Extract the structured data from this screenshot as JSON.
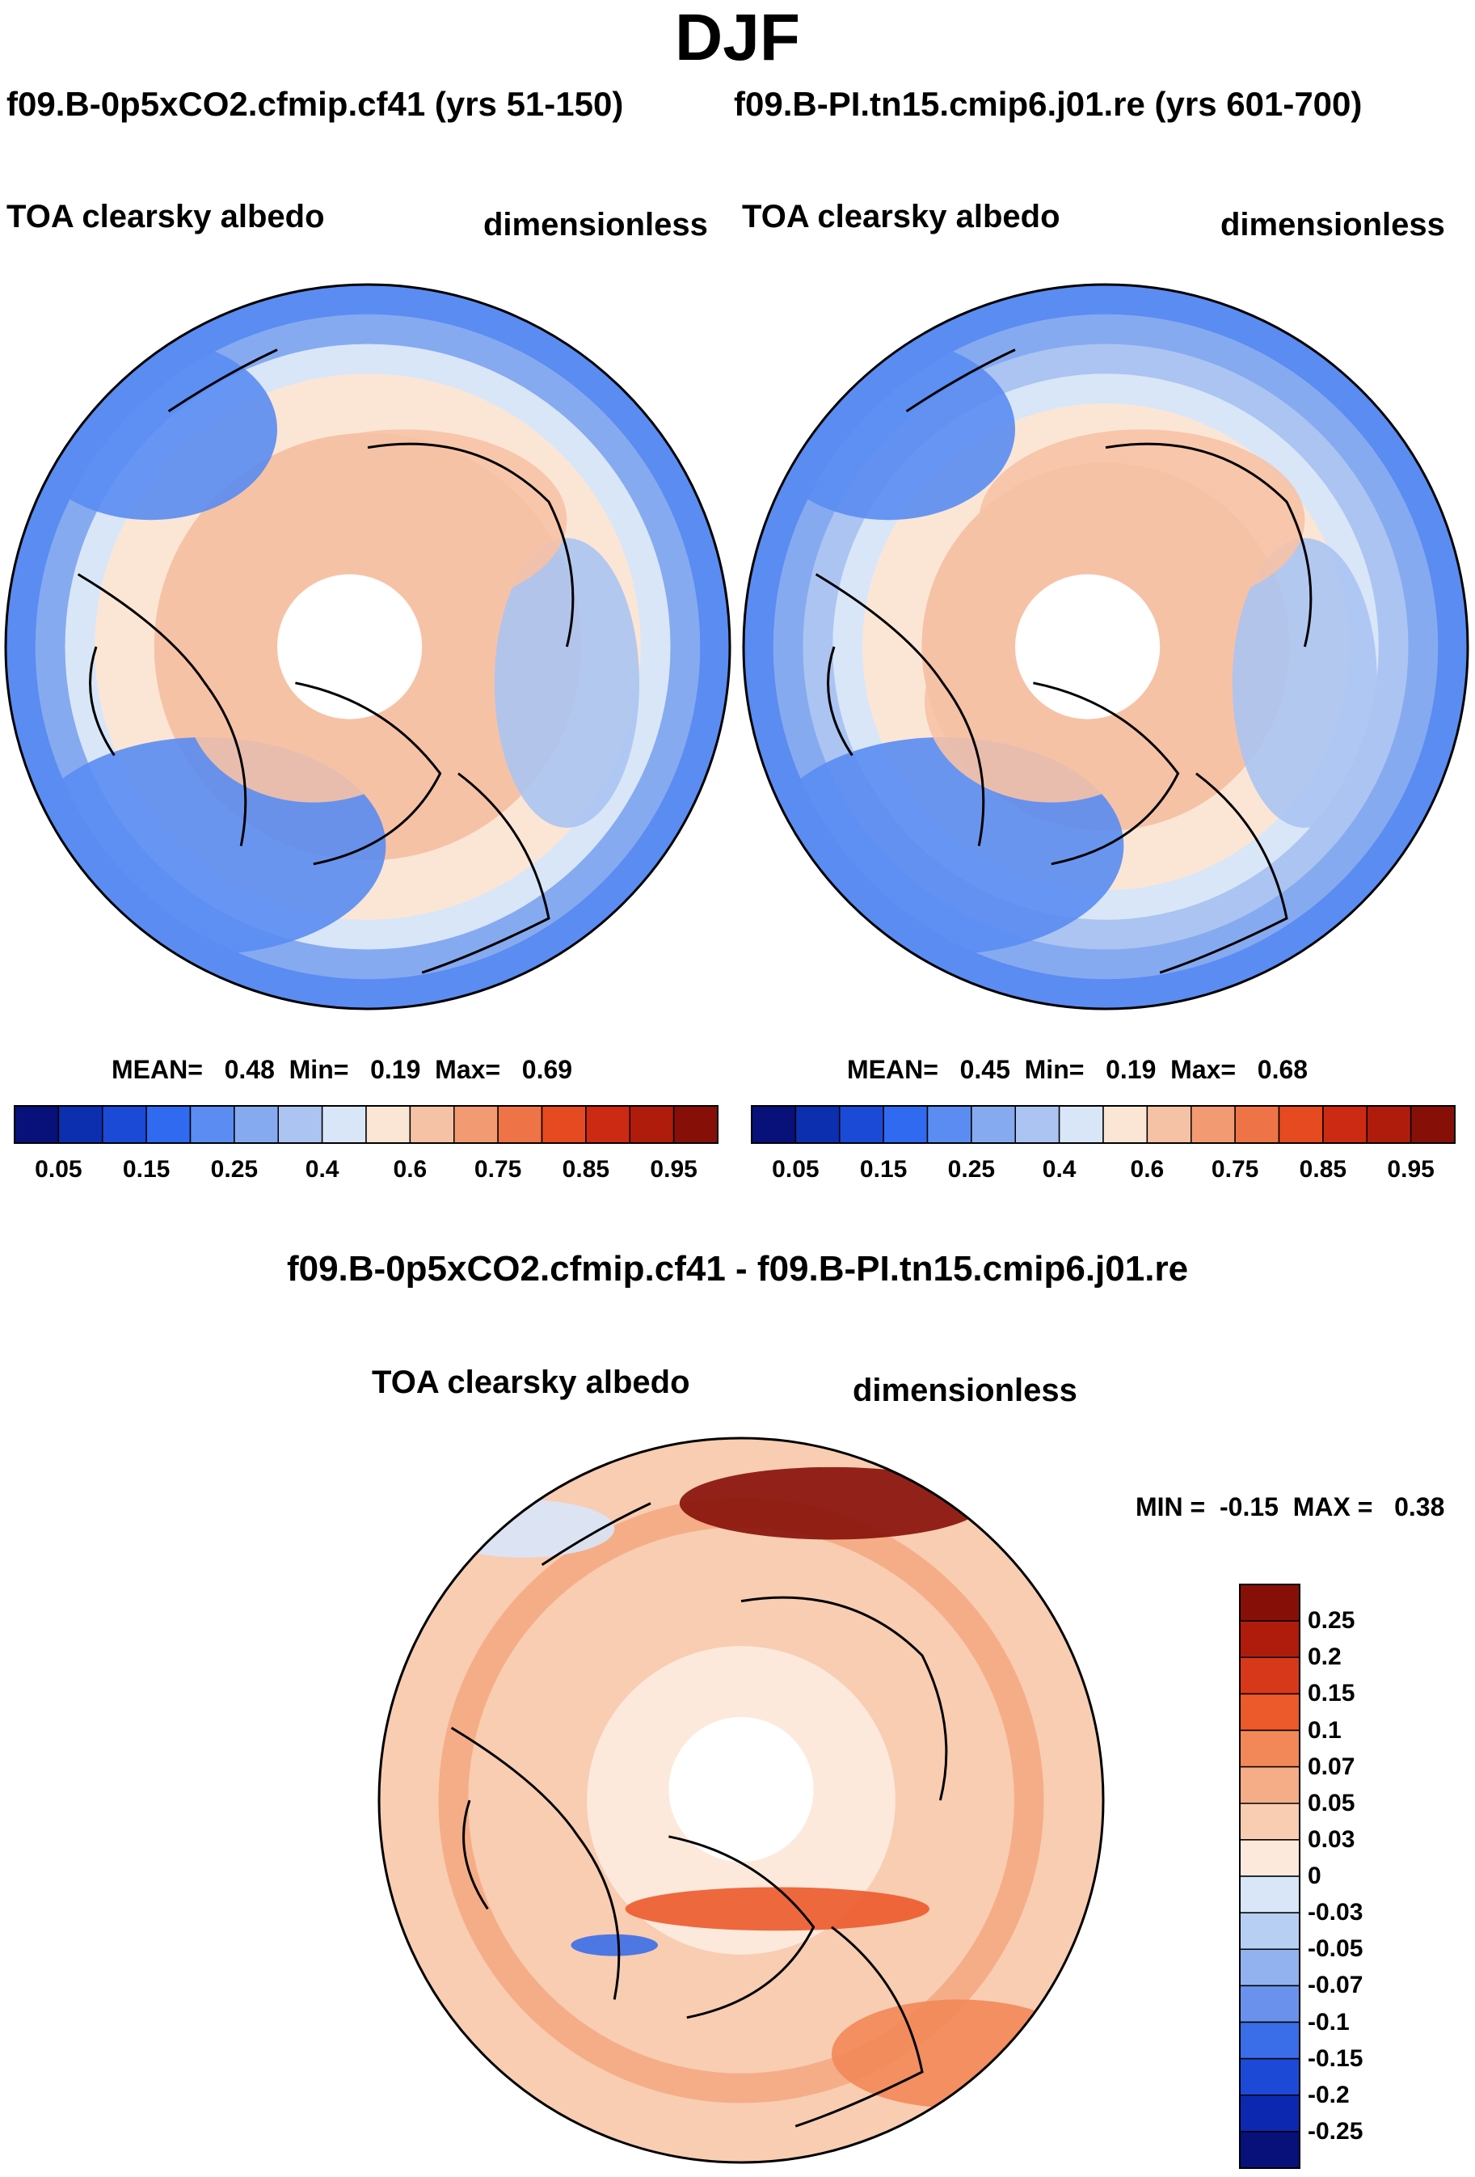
{
  "page": {
    "season": "DJF",
    "run_a_label": "f09.B-0p5xCO2.cfmip.cf41 (yrs 51-150)",
    "run_b_label": "f09.B-PI.tn15.cmip6.j01.re (yrs 601-700)",
    "diff_label": "f09.B-0p5xCO2.cfmip.cf41 - f09.B-PI.tn15.cmip6.j01.re"
  },
  "chart_data": [
    {
      "type": "heatmap",
      "projection": "north polar stereographic",
      "title": "TOA clearsky albedo",
      "units": "dimensionless",
      "stats": {
        "mean_label": "MEAN=",
        "mean": "0.48",
        "min_label": "Min=",
        "min": "0.19",
        "max_label": "Max=",
        "max": "0.69"
      },
      "levels": [
        0.05,
        0.1,
        0.15,
        0.2,
        0.25,
        0.3,
        0.35,
        0.4,
        0.5,
        0.6,
        0.7,
        0.75,
        0.8,
        0.85,
        0.9,
        0.95
      ],
      "tick_labels": [
        "0.05",
        "0.15",
        "0.25",
        "0.4",
        "0.6",
        "0.75",
        "0.85",
        "0.95"
      ],
      "colors": [
        "#08107a",
        "#0c2fb0",
        "#1a4ad6",
        "#2f6af0",
        "#5a8cf2",
        "#86aaf0",
        "#abc4f2",
        "#d8e6f8",
        "#fbe6d6",
        "#f6c2a6",
        "#f29a72",
        "#ee7346",
        "#e64a20",
        "#cc2a12",
        "#b01c0c",
        "#861008"
      ],
      "field": {
        "ring_values": [
          0.55,
          0.55,
          0.55,
          0.53,
          0.52,
          0.47,
          0.42,
          0.36,
          0.3,
          0.25
        ]
      }
    },
    {
      "type": "heatmap",
      "projection": "north polar stereographic",
      "title": "TOA clearsky albedo",
      "units": "dimensionless",
      "stats": {
        "mean_label": "MEAN=",
        "mean": "0.45",
        "min_label": "Min=",
        "min": "0.19",
        "max_label": "Max=",
        "max": "0.68"
      },
      "levels": [
        0.05,
        0.1,
        0.15,
        0.2,
        0.25,
        0.3,
        0.35,
        0.4,
        0.5,
        0.6,
        0.7,
        0.75,
        0.8,
        0.85,
        0.9,
        0.95
      ],
      "tick_labels": [
        "0.05",
        "0.15",
        "0.25",
        "0.4",
        "0.6",
        "0.75",
        "0.85",
        "0.95"
      ],
      "colors": [
        "#08107a",
        "#0c2fb0",
        "#1a4ad6",
        "#2f6af0",
        "#5a8cf2",
        "#86aaf0",
        "#abc4f2",
        "#d8e6f8",
        "#fbe6d6",
        "#f6c2a6",
        "#f29a72",
        "#ee7346",
        "#e64a20",
        "#cc2a12",
        "#b01c0c",
        "#861008"
      ],
      "field": {
        "ring_values": [
          0.55,
          0.55,
          0.54,
          0.52,
          0.5,
          0.45,
          0.4,
          0.34,
          0.29,
          0.24
        ]
      }
    },
    {
      "type": "heatmap",
      "projection": "north polar stereographic",
      "title": "TOA clearsky albedo",
      "units": "dimensionless",
      "stats": {
        "min_label": "MIN =",
        "min": "-0.15",
        "max_label": "MAX =",
        "max": "0.38"
      },
      "levels": [
        0.25,
        0.2,
        0.15,
        0.1,
        0.07,
        0.05,
        0.03,
        0,
        -0.03,
        -0.05,
        -0.07,
        -0.1,
        -0.15,
        -0.2,
        -0.25
      ],
      "tick_labels": [
        "0.25",
        "0.2",
        "0.15",
        "0.1",
        "0.07",
        "0.05",
        "0.03",
        "0",
        "-0.03",
        "-0.05",
        "-0.07",
        "-0.1",
        "-0.15",
        "-0.2",
        "-0.25"
      ],
      "colors": [
        "#861008",
        "#b01c0c",
        "#d8381a",
        "#ec5a2c",
        "#f28858",
        "#f5ad88",
        "#f8cdb2",
        "#fde9dc",
        "#d8e6f8",
        "#b8cff4",
        "#92b2ef",
        "#6a92ec",
        "#3a6ee8",
        "#1c4ad6",
        "#0c28b0",
        "#08107a"
      ],
      "field": {
        "ring_values": [
          0.02,
          0.02,
          0.02,
          0.03,
          0.03,
          0.03,
          0.04,
          0.05,
          0.04,
          0.03
        ]
      }
    }
  ]
}
